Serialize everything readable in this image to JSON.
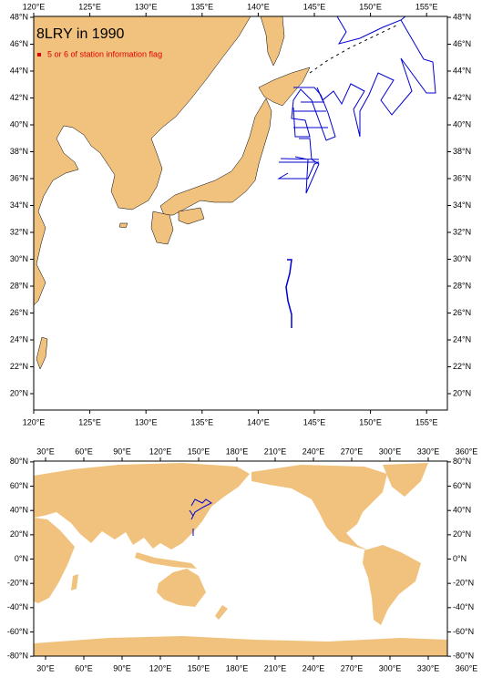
{
  "top_map": {
    "title": "8LRY in 1990",
    "legend": "5 or 6 of station information flag",
    "lon_ticks": [
      {
        "value": 120,
        "label": "120°E"
      },
      {
        "value": 125,
        "label": "125°E"
      },
      {
        "value": 130,
        "label": "130°E"
      },
      {
        "value": 135,
        "label": "135°E"
      },
      {
        "value": 140,
        "label": "140°E"
      },
      {
        "value": 145,
        "label": "145°E"
      },
      {
        "value": 150,
        "label": "150°E"
      },
      {
        "value": 155,
        "label": "155°E"
      }
    ],
    "lat_ticks": [
      {
        "value": 48,
        "label": "48°N"
      },
      {
        "value": 46,
        "label": "46°N"
      },
      {
        "value": 44,
        "label": "44°N"
      },
      {
        "value": 42,
        "label": "42°N"
      },
      {
        "value": 40,
        "label": "40°N"
      },
      {
        "value": 38,
        "label": "38°N"
      },
      {
        "value": 36,
        "label": "36°N"
      },
      {
        "value": 34,
        "label": "34°N"
      },
      {
        "value": 32,
        "label": "32°N"
      },
      {
        "value": 30,
        "label": "30°N"
      },
      {
        "value": 28,
        "label": "28°N"
      },
      {
        "value": 26,
        "label": "26°N"
      },
      {
        "value": 24,
        "label": "24°N"
      },
      {
        "value": 22,
        "label": "22°N"
      },
      {
        "value": 20,
        "label": "20°N"
      }
    ]
  },
  "bottom_map": {
    "lon_ticks": [
      {
        "value": 30,
        "label": "30°E"
      },
      {
        "value": 60,
        "label": "60°E"
      },
      {
        "value": 90,
        "label": "90°E"
      },
      {
        "value": 120,
        "label": "120°E"
      },
      {
        "value": 150,
        "label": "150°E"
      },
      {
        "value": 180,
        "label": "180°E"
      },
      {
        "value": 210,
        "label": "210°E"
      },
      {
        "value": 240,
        "label": "240°E"
      },
      {
        "value": 270,
        "label": "270°E"
      },
      {
        "value": 300,
        "label": "300°E"
      },
      {
        "value": 330,
        "label": "330°E"
      },
      {
        "value": 360,
        "label": "360°E"
      }
    ],
    "lat_ticks": [
      {
        "value": 80,
        "label": "80°N"
      },
      {
        "value": 60,
        "label": "60°N"
      },
      {
        "value": 40,
        "label": "40°N"
      },
      {
        "value": 20,
        "label": "20°N"
      },
      {
        "value": 0,
        "label": "0°N"
      },
      {
        "value": -20,
        "label": "-20°N"
      },
      {
        "value": -40,
        "label": "-40°N"
      },
      {
        "value": -60,
        "label": "-60°N"
      },
      {
        "value": -80,
        "label": "-80°N"
      }
    ]
  }
}
